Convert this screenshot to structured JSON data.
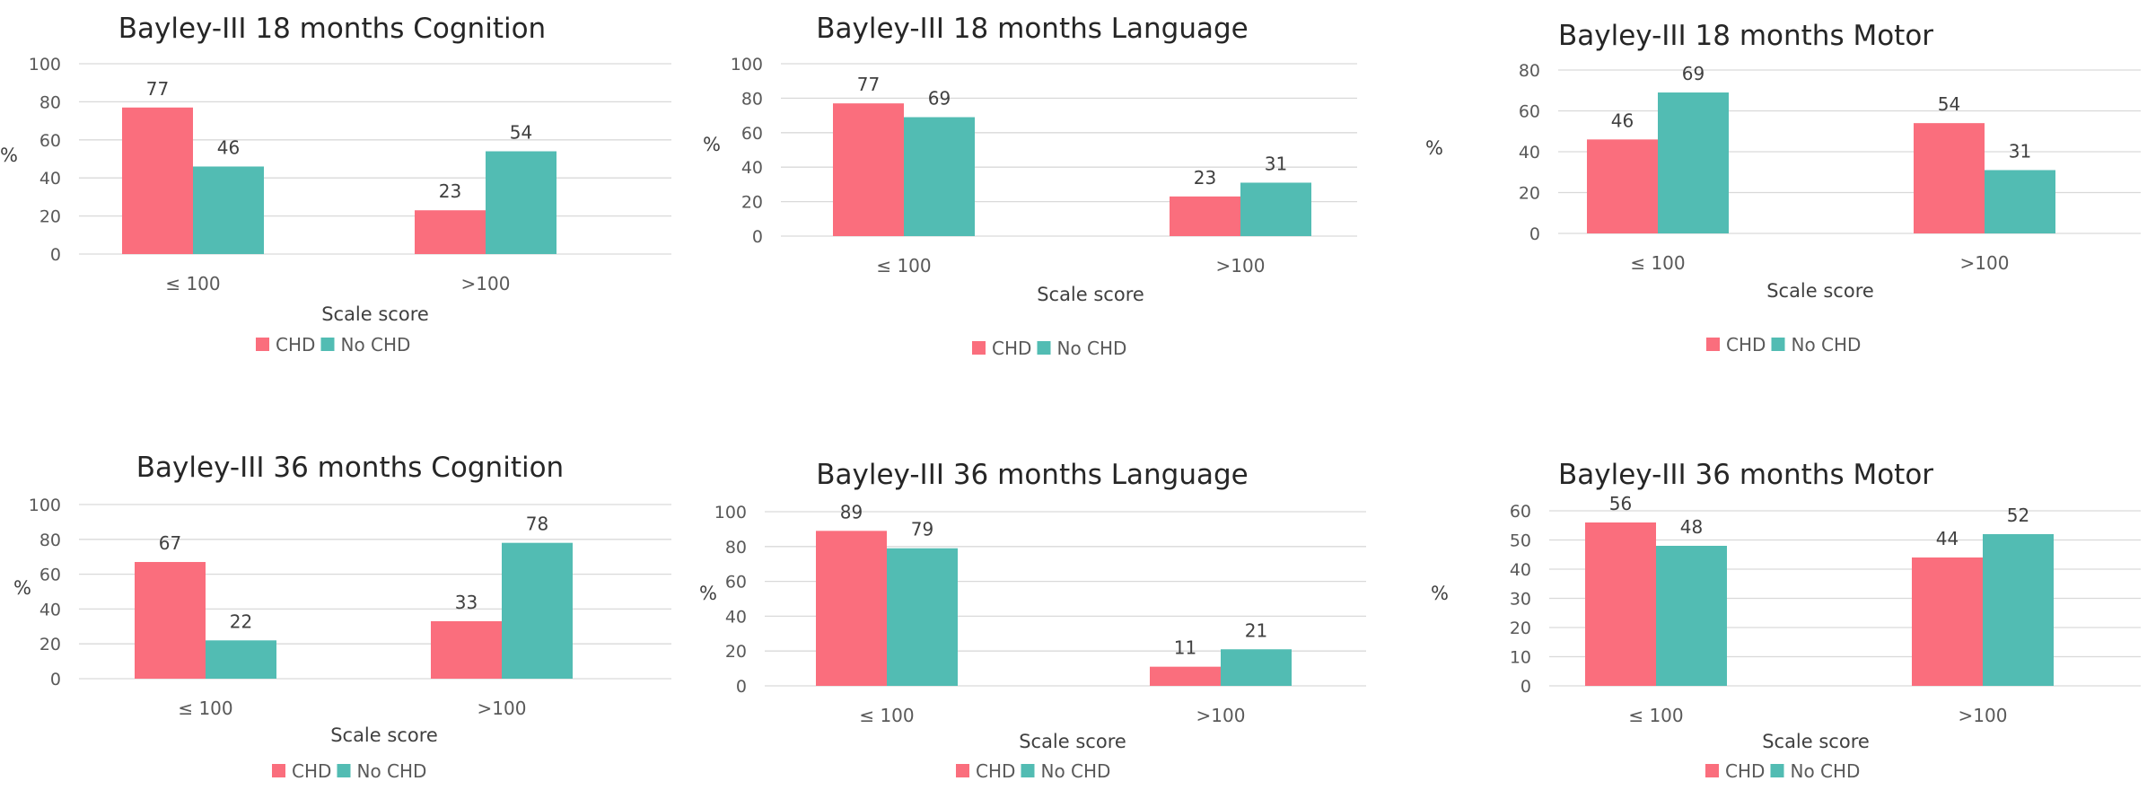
{
  "colors": {
    "chd": "#fa6e7d",
    "no_chd": "#52bcb3",
    "grid": "#d9d9d9"
  },
  "chart_data": [
    {
      "type": "bar",
      "title": "Bayley-III 18 months Cognition",
      "categories": [
        "≤ 100",
        ">100"
      ],
      "series": [
        {
          "name": "CHD",
          "values": [
            77,
            23
          ]
        },
        {
          "name": "No CHD",
          "values": [
            46,
            54
          ]
        }
      ],
      "xlabel": "Scale score",
      "ylabel": "%",
      "ylim": [
        0,
        100
      ],
      "yticks": [
        0,
        20,
        40,
        60,
        80,
        100
      ],
      "grid": true,
      "legend": "bottom"
    },
    {
      "type": "bar",
      "title": "Bayley-III 18 months Language",
      "categories": [
        "≤ 100",
        ">100"
      ],
      "series": [
        {
          "name": "CHD",
          "values": [
            77,
            23
          ]
        },
        {
          "name": "No CHD",
          "values": [
            69,
            31
          ]
        }
      ],
      "xlabel": "Scale score",
      "ylabel": "%",
      "ylim": [
        0,
        100
      ],
      "yticks": [
        0,
        20,
        40,
        60,
        80,
        100
      ],
      "grid": true,
      "legend": "bottom"
    },
    {
      "type": "bar",
      "title": "Bayley-III 18 months Motor",
      "categories": [
        "≤ 100",
        ">100"
      ],
      "series": [
        {
          "name": "CHD",
          "values": [
            46,
            54
          ]
        },
        {
          "name": "No CHD",
          "values": [
            69,
            31
          ]
        }
      ],
      "xlabel": "Scale score",
      "ylabel": "%",
      "ylim": [
        0,
        80
      ],
      "yticks": [
        0,
        20,
        40,
        60,
        80
      ],
      "grid": true,
      "legend": "bottom"
    },
    {
      "type": "bar",
      "title": "Bayley-III 36 months Cognition",
      "categories": [
        "≤ 100",
        ">100"
      ],
      "series": [
        {
          "name": "CHD",
          "values": [
            67,
            33
          ]
        },
        {
          "name": "No CHD",
          "values": [
            22,
            78
          ]
        }
      ],
      "xlabel": "Scale score",
      "ylabel": "%",
      "ylim": [
        0,
        100
      ],
      "yticks": [
        0,
        20,
        40,
        60,
        80,
        100
      ],
      "grid": true,
      "legend": "bottom"
    },
    {
      "type": "bar",
      "title": "Bayley-III 36 months Language",
      "categories": [
        "≤ 100",
        ">100"
      ],
      "series": [
        {
          "name": "CHD",
          "values": [
            89,
            11
          ]
        },
        {
          "name": "No CHD",
          "values": [
            79,
            21
          ]
        }
      ],
      "xlabel": "Scale score",
      "ylabel": "%",
      "ylim": [
        0,
        100
      ],
      "yticks": [
        0,
        20,
        40,
        60,
        80,
        100
      ],
      "grid": true,
      "legend": "bottom"
    },
    {
      "type": "bar",
      "title": "Bayley-III 36 months Motor",
      "categories": [
        "≤ 100",
        ">100"
      ],
      "series": [
        {
          "name": "CHD",
          "values": [
            56,
            44
          ]
        },
        {
          "name": "No CHD",
          "values": [
            48,
            52
          ]
        }
      ],
      "xlabel": "Scale score",
      "ylabel": "%",
      "ylim": [
        0,
        60
      ],
      "yticks": [
        0,
        10,
        20,
        30,
        40,
        50,
        60
      ],
      "grid": true,
      "legend": "bottom"
    }
  ]
}
